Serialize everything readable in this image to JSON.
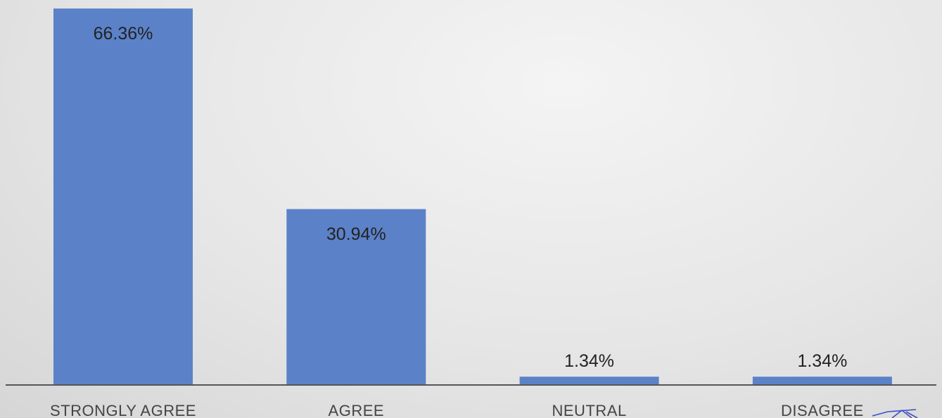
{
  "colors": {
    "bar": "#5b82c8",
    "axis": "#555555"
  },
  "chart_data": {
    "type": "bar",
    "categories": [
      "STRONGLY AGREE",
      "AGREE",
      "NEUTRAL",
      "DISAGREE"
    ],
    "values": [
      66.36,
      30.94,
      1.34,
      1.34
    ],
    "data_labels": [
      "66.36%",
      "30.94%",
      "1.34%",
      "1.34%"
    ],
    "ylim": [
      0,
      100
    ],
    "grid": false,
    "legend": "none"
  },
  "annotation_icon": "handwritten-mark-icon"
}
